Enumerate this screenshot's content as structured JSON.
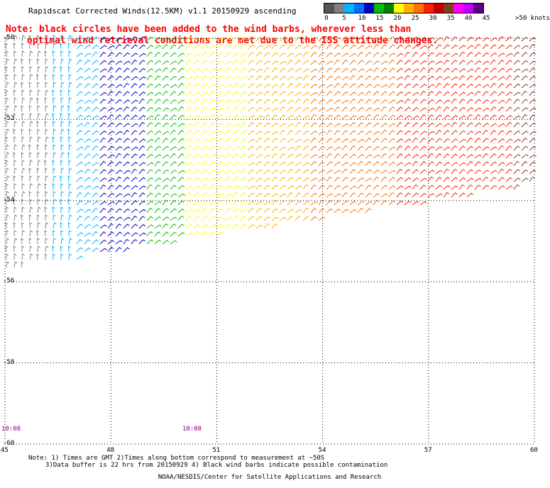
{
  "title": "Rapidscat Corrected Winds(12.5KM) v1.1 20150929 ascending",
  "note_line1": "Note: black circles have been added to the wind barbs, wherever less than",
  "note_line2": "optimal wind retrieval conditions are met due to the ISS attitude changes.",
  "scale": {
    "ticks": [
      "0",
      "5",
      "10",
      "15",
      "20",
      "25",
      "30",
      "35",
      "40",
      "45",
      ">50 knots"
    ],
    "colors": [
      "#555555",
      "#808080",
      "#00b4ff",
      "#0070ff",
      "#0000c0",
      "#00c000",
      "#008000",
      "#ffff00",
      "#ffb000",
      "#ff7000",
      "#ff2000",
      "#c00000",
      "#804020",
      "#ff00ff",
      "#c000ff",
      "#600080"
    ]
  },
  "axes": {
    "lat_labels": [
      "-50",
      "-52",
      "-54",
      "-56",
      "-58",
      "-60"
    ],
    "lon_labels": [
      "45",
      "48",
      "51",
      "54",
      "57",
      "60"
    ],
    "lat_range": [
      -50,
      -60
    ],
    "lon_range": [
      45,
      60
    ]
  },
  "times": [
    "10:08",
    "10:08"
  ],
  "footer_line1": "Note: 1) Times are GMT 2)Times along bottom correspond to measurement at ~50S",
  "footer_line2": "3)Data buffer is 22 hrs from 20150929 4) Black wind barbs indicate possible contamination",
  "credit": "NOAA/NESDIS/Center for Satellite Applications and Research"
}
